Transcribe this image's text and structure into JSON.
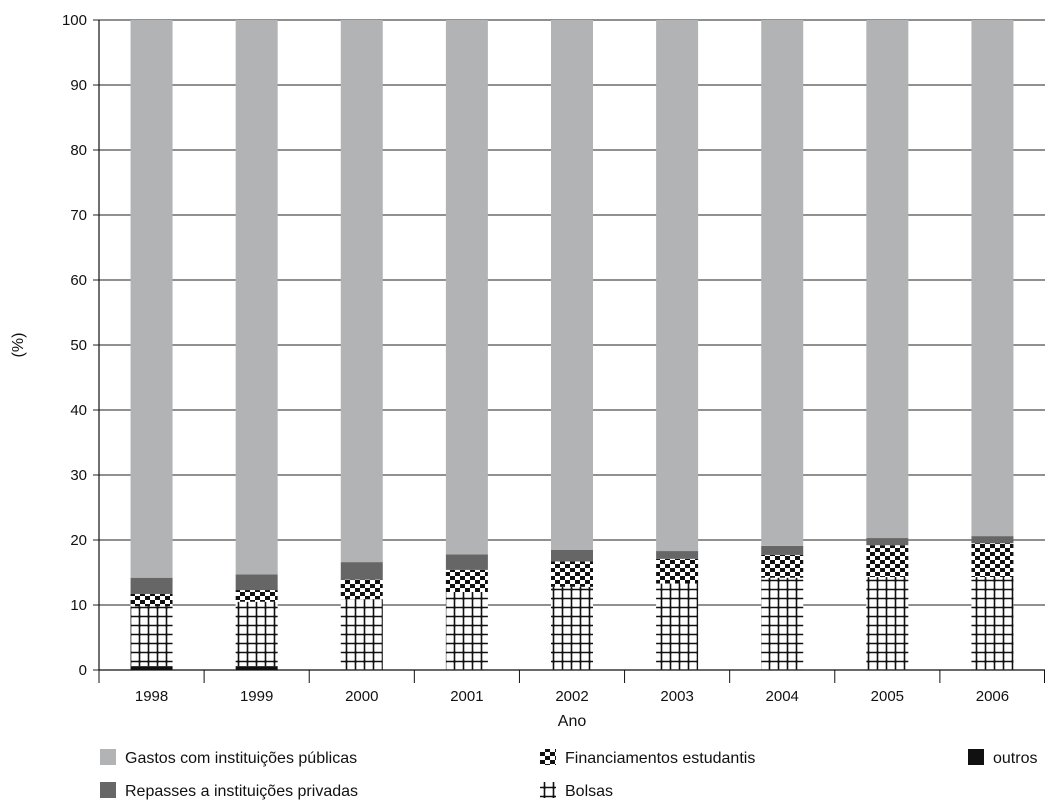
{
  "chart_data": {
    "type": "bar",
    "stacked": true,
    "title": "",
    "xlabel": "Ano",
    "ylabel": "(%)",
    "ylim": [
      0,
      100
    ],
    "yticks": [
      0,
      10,
      20,
      30,
      40,
      50,
      60,
      70,
      80,
      90,
      100
    ],
    "grid": "horizontal",
    "legend_position": "bottom",
    "categories": [
      "1998",
      "1999",
      "2000",
      "2001",
      "2002",
      "2003",
      "2004",
      "2005",
      "2006"
    ],
    "series": [
      {
        "name": "outros",
        "color": "#111111",
        "pattern": "solid",
        "values": [
          0.6,
          0.6,
          0.1,
          0.1,
          0.1,
          0.1,
          0.1,
          0.1,
          0.1
        ]
      },
      {
        "name": "Bolsas",
        "color": "#222222",
        "pattern": "grid",
        "values": [
          9.2,
          9.9,
          10.8,
          11.9,
          12.7,
          13.2,
          14.1,
          14.2,
          14.2
        ]
      },
      {
        "name": "Financiamentos estudantis",
        "color": "#222222",
        "pattern": "checker",
        "values": [
          1.9,
          1.8,
          3.0,
          3.4,
          3.9,
          3.8,
          3.5,
          4.9,
          5.2
        ]
      },
      {
        "name": "Repasses a instituições privadas",
        "color": "#666666",
        "pattern": "solid",
        "values": [
          2.5,
          2.4,
          2.7,
          2.4,
          1.8,
          1.2,
          1.4,
          1.1,
          1.1
        ]
      },
      {
        "name": "Gastos com instituições públicas",
        "color": "#b2b3b5",
        "pattern": "solid",
        "values": [
          85.8,
          85.3,
          83.4,
          82.2,
          81.5,
          81.7,
          80.9,
          79.7,
          79.4
        ]
      }
    ],
    "legend": [
      {
        "name": "Gastos com instituições públicas",
        "pattern": "solid",
        "color": "#b2b3b5"
      },
      {
        "name": "Repasses a instituições privadas",
        "pattern": "solid",
        "color": "#666666"
      },
      {
        "name": "Financiamentos estudantis",
        "pattern": "checker",
        "color": "#222222"
      },
      {
        "name": "Bolsas",
        "pattern": "grid",
        "color": "#222222"
      },
      {
        "name": "outros",
        "pattern": "solid",
        "color": "#111111"
      }
    ]
  }
}
